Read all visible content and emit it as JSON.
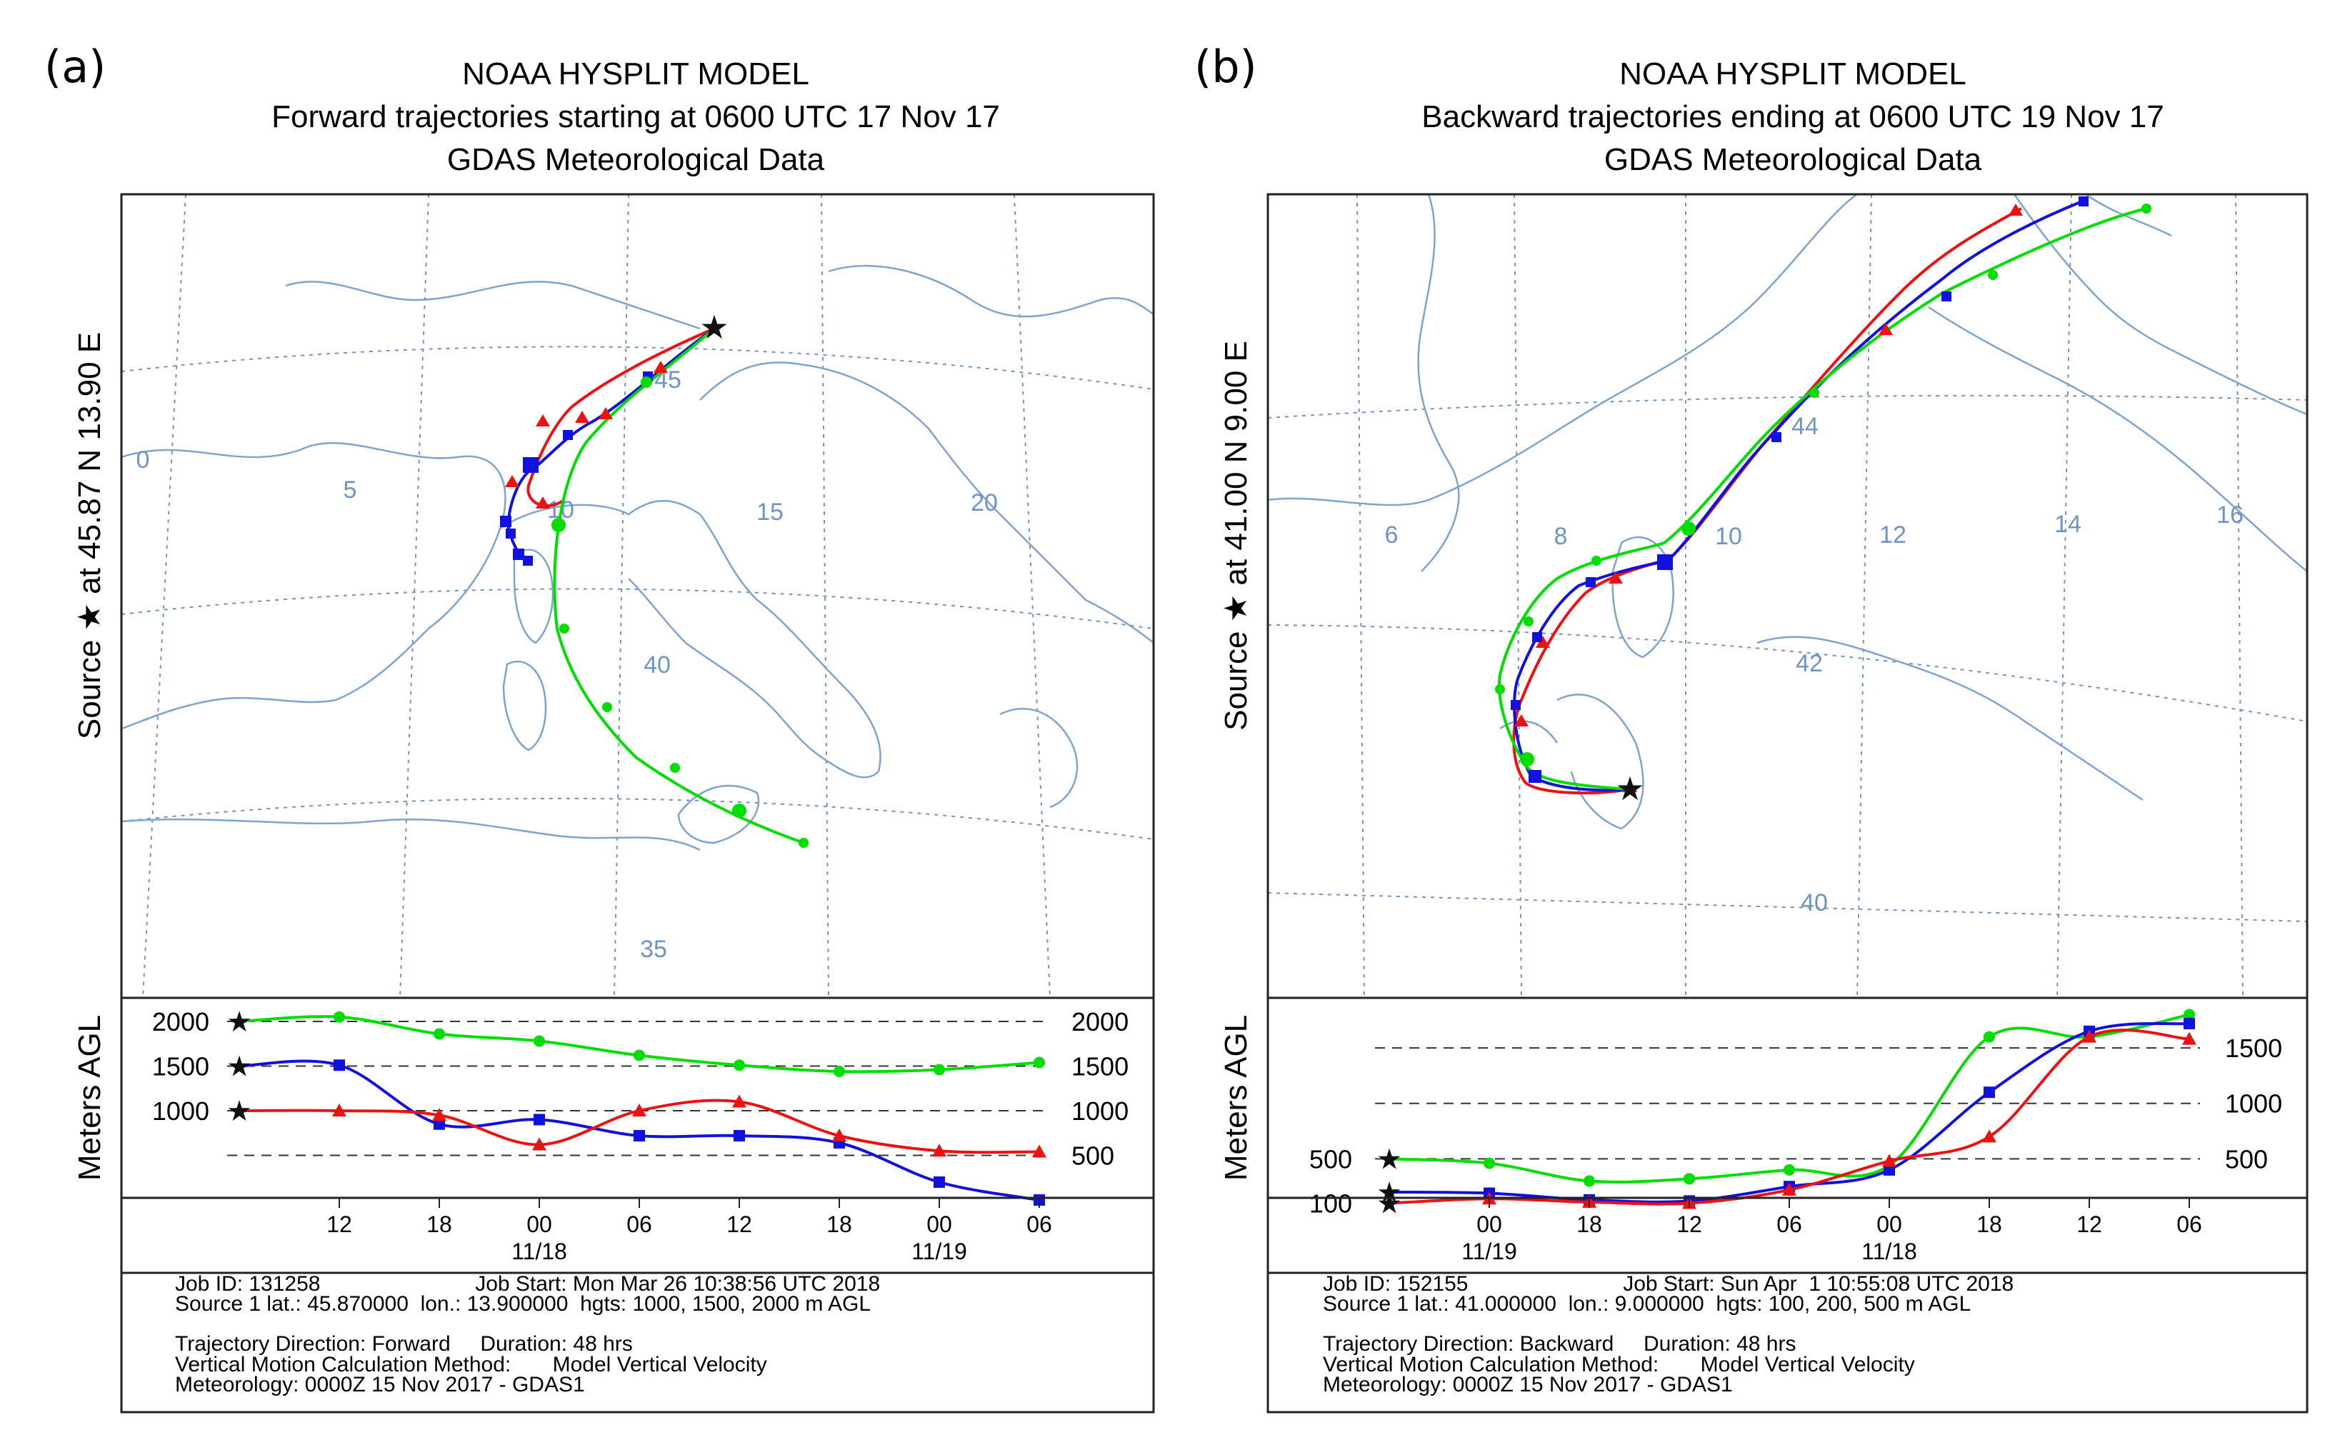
{
  "figure": {
    "panels": [
      {
        "letter": "(a)",
        "title": [
          "NOAA HYSPLIT MODEL",
          "Forward trajectories starting at 0600 UTC 17 Nov 17",
          "GDAS Meteorological Data"
        ],
        "side_label": "Source ★ at 45.87 N 13.90 E",
        "grid_labels": [
          "0",
          "5",
          "10",
          "15",
          "20",
          "35",
          "40",
          "45"
        ],
        "height_axis_label": "Meters AGL",
        "info": [
          "Job ID: 131258                          Job Start: Mon Mar 26 10:38:56 UTC 2018",
          "Source 1 lat.: 45.870000  lon.: 13.900000  hgts: 1000, 1500, 2000 m AGL",
          "",
          "Trajectory Direction: Forward     Duration: 48 hrs",
          "Vertical Motion Calculation Method:       Model Vertical Velocity",
          "Meteorology: 0000Z 15 Nov 2017 - GDAS1"
        ]
      },
      {
        "letter": "(b)",
        "title": [
          "NOAA HYSPLIT MODEL",
          "Backward trajectories ending at 0600 UTC 19 Nov 17",
          "GDAS Meteorological Data"
        ],
        "side_label": "Source ★ at 41.00 N 9.00 E",
        "grid_labels": [
          "6",
          "8",
          "10",
          "12",
          "14",
          "16",
          "40",
          "42",
          "44"
        ],
        "height_axis_label": "Meters AGL",
        "info": [
          "Job ID: 152155                          Job Start: Sun Apr  1 10:55:08 UTC 2018",
          "Source 1 lat.: 41.000000  lon.: 9.000000  hgts: 100, 200, 500 m AGL",
          "",
          "Trajectory Direction: Backward     Duration: 48 hrs",
          "Vertical Motion Calculation Method:       Model Vertical Velocity",
          "Meteorology: 0000Z 15 Nov 2017 - GDAS1"
        ]
      }
    ]
  },
  "chart_data": [
    {
      "type": "line",
      "title": "Forward trajectories starting at 0600 UTC 17 Nov 17",
      "xlabel": "",
      "ylabel": "Meters AGL",
      "x": [
        "06",
        "12",
        "18",
        "00",
        "06",
        "12",
        "18",
        "00",
        "06"
      ],
      "x_tick_labels": [
        "12",
        "18",
        "00",
        "06",
        "12",
        "18",
        "00",
        "06"
      ],
      "x_date_labels": [
        "11/18",
        "11/19"
      ],
      "y_ticks": [
        2000,
        1500,
        1000,
        500
      ],
      "ylim": [
        0,
        2200
      ],
      "series": [
        {
          "name": "2000 m AGL",
          "color": "#00dd00",
          "values": [
            2000,
            2050,
            1860,
            1780,
            1620,
            1510,
            1440,
            1460,
            1540
          ]
        },
        {
          "name": "1500 m AGL",
          "color": "#1111dd",
          "values": [
            1500,
            1510,
            850,
            900,
            720,
            720,
            640,
            200,
            0
          ]
        },
        {
          "name": "1000 m AGL",
          "color": "#ee1111",
          "values": [
            1000,
            1000,
            950,
            620,
            1000,
            1100,
            720,
            550,
            540
          ]
        }
      ]
    },
    {
      "type": "line",
      "title": "Backward trajectories ending at 0600 UTC 19 Nov 17",
      "xlabel": "",
      "ylabel": "Meters AGL",
      "x": [
        "06",
        "00",
        "18",
        "12",
        "06",
        "00",
        "18",
        "12",
        "06"
      ],
      "x_tick_labels": [
        "00",
        "18",
        "12",
        "06",
        "00",
        "18",
        "12",
        "06"
      ],
      "x_date_labels": [
        "11/19",
        "11/18"
      ],
      "y_ticks_left": [
        500,
        100
      ],
      "y_ticks_right": [
        1500,
        1000,
        500
      ],
      "ylim": [
        0,
        1900
      ],
      "series": [
        {
          "name": "500 m AGL",
          "color": "#00dd00",
          "values": [
            500,
            460,
            300,
            320,
            400,
            440,
            1600,
            1600,
            1800
          ]
        },
        {
          "name": "200 m AGL",
          "color": "#1111dd",
          "values": [
            200,
            190,
            130,
            120,
            250,
            400,
            1100,
            1650,
            1720
          ]
        },
        {
          "name": "100 m AGL",
          "color": "#ee1111",
          "values": [
            100,
            140,
            110,
            100,
            220,
            480,
            700,
            1600,
            1580
          ]
        }
      ]
    }
  ]
}
